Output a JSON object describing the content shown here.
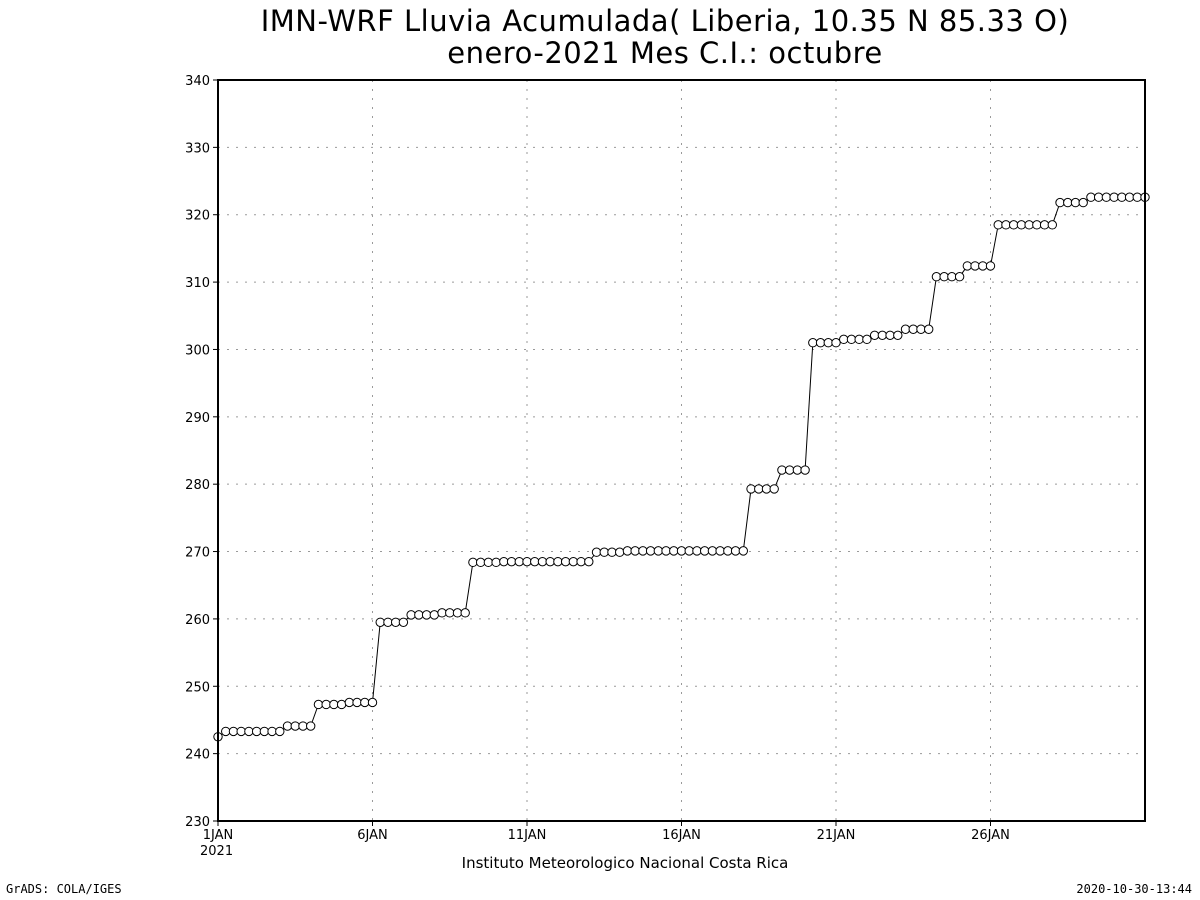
{
  "title_line1": "IMN-WRF  Lluvia Acumulada( Liberia, 10.35  N 85.33  O)",
  "title_line2": "enero-2021 Mes C.I.: octubre",
  "xlabel": "Instituto Meteorologico Nacional Costa Rica",
  "year_label": "2021",
  "credit_left": "GrADS: COLA/IGES",
  "credit_right": "2020-10-30-13:44",
  "chart_data": {
    "type": "line",
    "title": "IMN-WRF  Lluvia Acumulada( Liberia, 10.35  N 85.33  O)",
    "subtitle": "enero-2021 Mes C.I.: octubre",
    "xlabel": "Instituto Meteorologico Nacional Costa Rica",
    "ylabel": "",
    "ylim": [
      230,
      340
    ],
    "yticks": [
      230,
      240,
      250,
      260,
      270,
      280,
      290,
      300,
      310,
      320,
      330,
      340
    ],
    "xlim": [
      1,
      31
    ],
    "xticks": [
      {
        "day": 1,
        "label": "1JAN"
      },
      {
        "day": 6,
        "label": "6JAN"
      },
      {
        "day": 11,
        "label": "11JAN"
      },
      {
        "day": 16,
        "label": "16JAN"
      },
      {
        "day": 21,
        "label": "21JAN"
      },
      {
        "day": 26,
        "label": "26JAN"
      }
    ],
    "grid": true,
    "marker": "open-circle",
    "color": "#000000",
    "x_unit": "day of January 2021 (6-hourly)",
    "y": [
      242.5,
      243.3,
      243.3,
      243.3,
      243.3,
      243.3,
      243.3,
      243.3,
      243.3,
      244.1,
      244.1,
      244.1,
      244.1,
      247.3,
      247.3,
      247.3,
      247.3,
      247.6,
      247.6,
      247.6,
      247.6,
      259.5,
      259.5,
      259.5,
      259.5,
      260.6,
      260.6,
      260.6,
      260.6,
      260.9,
      260.9,
      260.9,
      260.9,
      268.4,
      268.4,
      268.4,
      268.4,
      268.5,
      268.5,
      268.5,
      268.5,
      268.5,
      268.5,
      268.5,
      268.5,
      268.5,
      268.5,
      268.5,
      268.5,
      269.9,
      269.9,
      269.9,
      269.9,
      270.1,
      270.1,
      270.1,
      270.1,
      270.1,
      270.1,
      270.1,
      270.1,
      270.1,
      270.1,
      270.1,
      270.1,
      270.1,
      270.1,
      270.1,
      270.1,
      279.3,
      279.3,
      279.3,
      279.3,
      282.1,
      282.1,
      282.1,
      282.1,
      301.0,
      301.0,
      301.0,
      301.0,
      301.5,
      301.5,
      301.5,
      301.5,
      302.1,
      302.1,
      302.1,
      302.1,
      303.0,
      303.0,
      303.0,
      303.0,
      310.8,
      310.8,
      310.8,
      310.8,
      312.4,
      312.4,
      312.4,
      312.4,
      318.5,
      318.5,
      318.5,
      318.5,
      318.5,
      318.5,
      318.5,
      318.5,
      321.8,
      321.8,
      321.8,
      321.8,
      322.6,
      322.6,
      322.6,
      322.6,
      322.6,
      322.6,
      322.6,
      322.6
    ]
  }
}
